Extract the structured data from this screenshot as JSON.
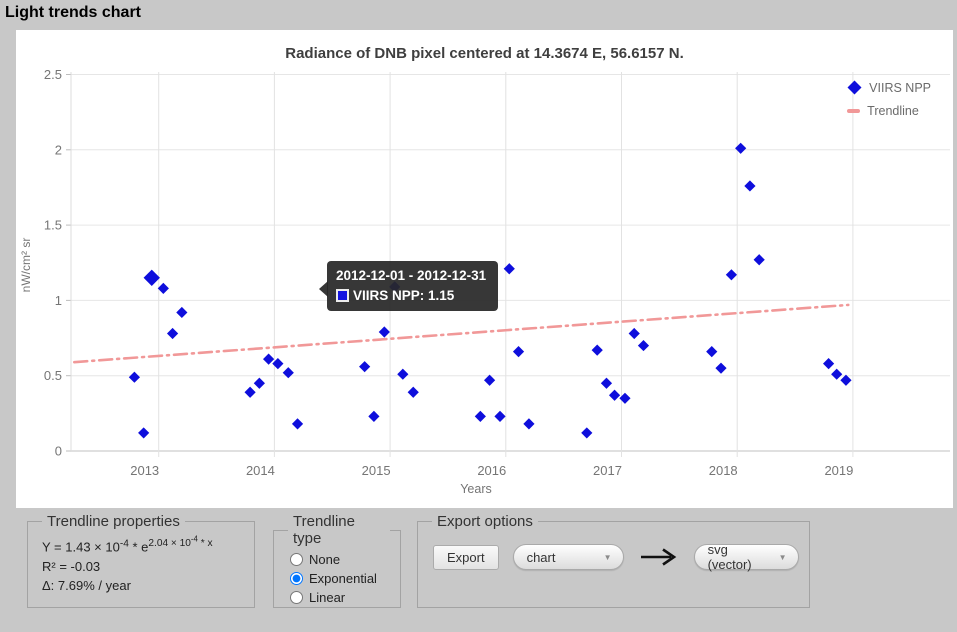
{
  "window": {
    "title": "Light trends chart"
  },
  "chart_data": {
    "type": "scatter",
    "title": "Radiance of DNB pixel centered at 14.3674 E, 56.6157 N.",
    "xlabel": "Years",
    "ylabel": "nW/cm² sr",
    "x_ticks": [
      2013,
      2014,
      2015,
      2016,
      2017,
      2018,
      2019
    ],
    "y_ticks": [
      0,
      0.5,
      1,
      1.5,
      2,
      2.5
    ],
    "xlim": [
      2012.24,
      2019.84
    ],
    "ylim": [
      0,
      2.5
    ],
    "grid": true,
    "legend_position": "top-right",
    "series": [
      {
        "name": "VIIRS NPP",
        "color": "#0e0edc",
        "marker": "diamond",
        "highlight_index": 2,
        "points": [
          [
            2012.79,
            0.49
          ],
          [
            2012.87,
            0.12
          ],
          [
            2012.94,
            1.15
          ],
          [
            2013.04,
            1.08
          ],
          [
            2013.12,
            0.78
          ],
          [
            2013.2,
            0.92
          ],
          [
            2013.79,
            0.39
          ],
          [
            2013.87,
            0.45
          ],
          [
            2013.95,
            0.61
          ],
          [
            2014.03,
            0.58
          ],
          [
            2014.12,
            0.52
          ],
          [
            2014.2,
            0.18
          ],
          [
            2014.78,
            0.56
          ],
          [
            2014.86,
            0.23
          ],
          [
            2014.95,
            0.79
          ],
          [
            2015.04,
            1.09
          ],
          [
            2015.11,
            0.51
          ],
          [
            2015.2,
            0.39
          ],
          [
            2015.78,
            0.23
          ],
          [
            2015.86,
            0.47
          ],
          [
            2015.95,
            0.23
          ],
          [
            2016.03,
            1.21
          ],
          [
            2016.11,
            0.66
          ],
          [
            2016.2,
            0.18
          ],
          [
            2016.7,
            0.12
          ],
          [
            2016.79,
            0.67
          ],
          [
            2016.87,
            0.45
          ],
          [
            2016.94,
            0.37
          ],
          [
            2017.03,
            0.35
          ],
          [
            2017.11,
            0.78
          ],
          [
            2017.19,
            0.7
          ],
          [
            2017.78,
            0.66
          ],
          [
            2017.86,
            0.55
          ],
          [
            2017.95,
            1.17
          ],
          [
            2018.03,
            2.01
          ],
          [
            2018.11,
            1.76
          ],
          [
            2018.19,
            1.27
          ],
          [
            2018.79,
            0.58
          ],
          [
            2018.86,
            0.51
          ],
          [
            2018.94,
            0.47
          ]
        ]
      }
    ],
    "trendline": {
      "name": "Trendline",
      "color": "#f19898",
      "style": "dash-dot",
      "points": [
        [
          2012.27,
          0.59
        ],
        [
          2018.96,
          0.97
        ]
      ]
    },
    "legend": [
      "VIIRS NPP",
      "Trendline"
    ]
  },
  "tooltip": {
    "date_range": "2012-12-01 - 2012-12-31",
    "value_label": "VIIRS NPP: 1.15",
    "swatch_color": "#1414e0"
  },
  "panels": {
    "trendline_properties": {
      "legend": "Trendline properties",
      "formula": {
        "base": "Y = 1.43 × 10",
        "sup1": "-4",
        "mid": " * e",
        "exp_base": "2.04 × 10",
        "exp_sup": "-4",
        "exp_tail": " * x"
      },
      "r2": "R² = -0.03",
      "delta": "Δ: 7.69% / year"
    },
    "trendline_type": {
      "legend": "Trendline type",
      "options": [
        "None",
        "Exponential",
        "Linear"
      ],
      "selected": "Exponential"
    },
    "export_options": {
      "legend": "Export options",
      "button": "Export",
      "target_value": "chart",
      "format_value": "svg (vector)"
    }
  }
}
